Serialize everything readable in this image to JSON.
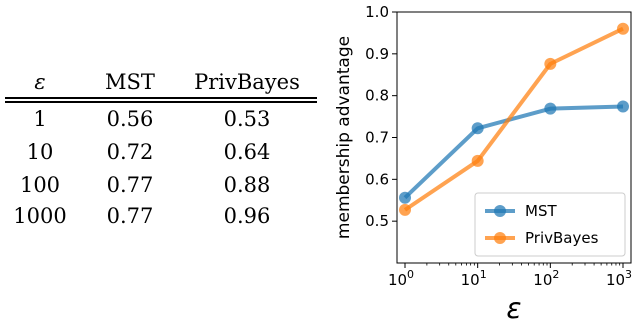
{
  "table": {
    "headers": [
      "ε",
      "MST",
      "PrivBayes"
    ],
    "rows": [
      [
        "1",
        "0.56",
        "0.53"
      ],
      [
        "10",
        "0.72",
        "0.64"
      ],
      [
        "100",
        "0.77",
        "0.88"
      ],
      [
        "1000",
        "0.77",
        "0.96"
      ]
    ]
  },
  "chart_data": {
    "type": "line",
    "xscale": "log",
    "x": [
      1,
      10,
      100,
      1000
    ],
    "xticks": [
      {
        "base": "10",
        "exp": "0"
      },
      {
        "base": "10",
        "exp": "1"
      },
      {
        "base": "10",
        "exp": "2"
      },
      {
        "base": "10",
        "exp": "3"
      }
    ],
    "xlabel": "ε",
    "ylabel": "membership advantage",
    "ylim": [
      0.4,
      1.0
    ],
    "yticks": [
      "0.5",
      "0.6",
      "0.7",
      "0.8",
      "0.9",
      "1.0"
    ],
    "grid": false,
    "legend_position": "lower-right",
    "series": [
      {
        "name": "MST",
        "color": "#1f77b4",
        "values": [
          0.556,
          0.722,
          0.769,
          0.774
        ]
      },
      {
        "name": "PrivBayes",
        "color": "#ff7f0e",
        "values": [
          0.527,
          0.644,
          0.876,
          0.96
        ]
      }
    ]
  }
}
